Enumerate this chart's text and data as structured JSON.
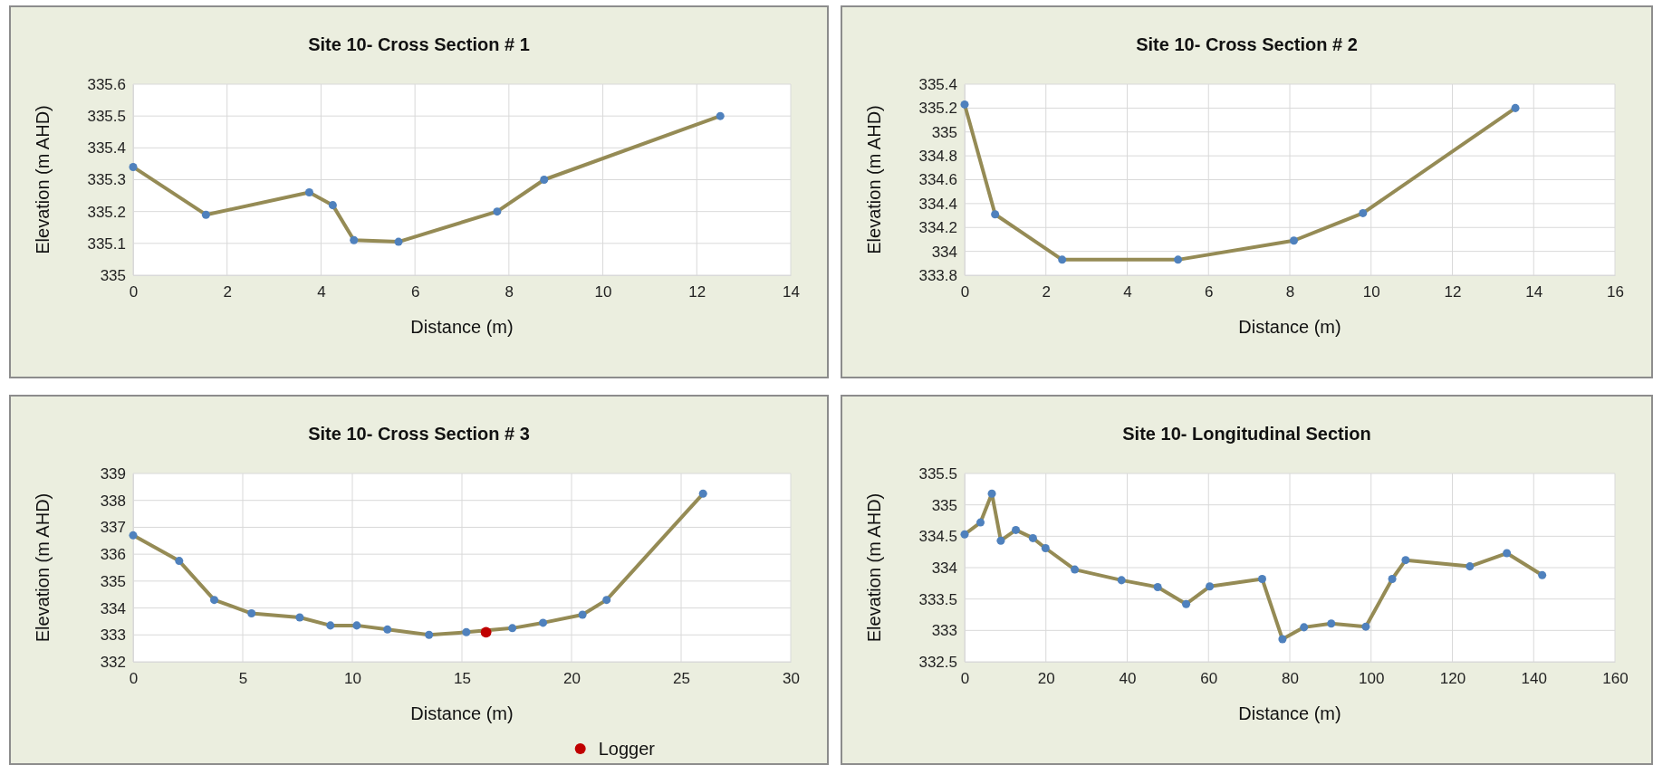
{
  "chart_data": [
    {
      "type": "line",
      "title": "Site 10- Cross Section # 1",
      "xlabel": "Distance (m)",
      "ylabel": "Elevation (m AHD)",
      "xlim": [
        0,
        14
      ],
      "xticks": [
        0,
        2,
        4,
        6,
        8,
        10,
        12,
        14
      ],
      "ylim": [
        335,
        335.6
      ],
      "yticks": [
        335,
        335.1,
        335.2,
        335.3,
        335.4,
        335.5,
        335.6
      ],
      "grid": true,
      "marker": "circle",
      "series": [
        {
          "color": "#958b55",
          "x": [
            0,
            1.55,
            3.75,
            4.25,
            4.7,
            5.65,
            7.75,
            8.75,
            12.5
          ],
          "values": [
            335.34,
            335.19,
            335.26,
            335.22,
            335.11,
            335.105,
            335.2,
            335.3,
            335.5
          ]
        }
      ]
    },
    {
      "type": "line",
      "title": "Site 10- Cross Section # 2",
      "xlabel": "Distance (m)",
      "ylabel": "Elevation (m AHD)",
      "xlim": [
        0,
        16
      ],
      "xticks": [
        0,
        2,
        4,
        6,
        8,
        10,
        12,
        14,
        16
      ],
      "ylim": [
        333.8,
        335.4
      ],
      "yticks": [
        333.8,
        334,
        334.2,
        334.4,
        334.6,
        334.8,
        335,
        335.2,
        335.4
      ],
      "grid": true,
      "marker": "circle",
      "series": [
        {
          "color": "#958b55",
          "x": [
            0,
            0.75,
            2.4,
            5.25,
            8.1,
            9.8,
            13.55
          ],
          "values": [
            335.23,
            334.31,
            333.93,
            333.93,
            334.09,
            334.32,
            335.2
          ]
        }
      ]
    },
    {
      "type": "line",
      "title": "Site 10- Cross Section # 3",
      "xlabel": "Distance (m)",
      "ylabel": "Elevation (m AHD)",
      "xlim": [
        0,
        30
      ],
      "xticks": [
        0,
        5,
        10,
        15,
        20,
        25,
        30
      ],
      "ylim": [
        332,
        339
      ],
      "yticks": [
        332,
        333,
        334,
        335,
        336,
        337,
        338,
        339
      ],
      "grid": true,
      "marker": "circle",
      "legend": "bottom right",
      "series": [
        {
          "color": "#958b55",
          "x": [
            0,
            2.1,
            3.7,
            5.4,
            7.6,
            9,
            10.2,
            11.6,
            13.5,
            15.2,
            17.3,
            18.7,
            20.5,
            21.6,
            26
          ],
          "values": [
            336.7,
            335.75,
            334.3,
            333.8,
            333.65,
            333.35,
            333.35,
            333.2,
            333.0,
            333.1,
            333.25,
            333.45,
            333.75,
            334.3,
            338.25
          ]
        },
        {
          "type": "scatter",
          "name": "Logger",
          "color": "#c00000",
          "x": [
            16.1
          ],
          "values": [
            333.1
          ]
        }
      ]
    },
    {
      "type": "line",
      "title": "Site 10- Longitudinal Section",
      "xlabel": "Distance (m)",
      "ylabel": "Elevation (m AHD)",
      "xlim": [
        0,
        160
      ],
      "xticks": [
        0,
        20,
        40,
        60,
        80,
        100,
        120,
        140,
        160
      ],
      "ylim": [
        332.5,
        335.5
      ],
      "yticks": [
        332.5,
        333,
        333.5,
        334,
        334.5,
        335,
        335.5
      ],
      "grid": true,
      "marker": "circle",
      "series": [
        {
          "color": "#958b55",
          "x": [
            0,
            3.9,
            6.7,
            8.9,
            12.6,
            16.8,
            19.9,
            27.1,
            38.6,
            47.5,
            54.5,
            60.3,
            73.2,
            78.2,
            83.5,
            90.2,
            98.7,
            105.2,
            108.5,
            124.3,
            133.4,
            142.1
          ],
          "values": [
            334.53,
            334.72,
            335.18,
            334.43,
            334.6,
            334.47,
            334.31,
            333.97,
            333.8,
            333.69,
            333.42,
            333.7,
            333.82,
            332.86,
            333.05,
            333.11,
            333.06,
            333.82,
            334.12,
            334.02,
            334.23,
            333.88
          ]
        }
      ]
    }
  ]
}
